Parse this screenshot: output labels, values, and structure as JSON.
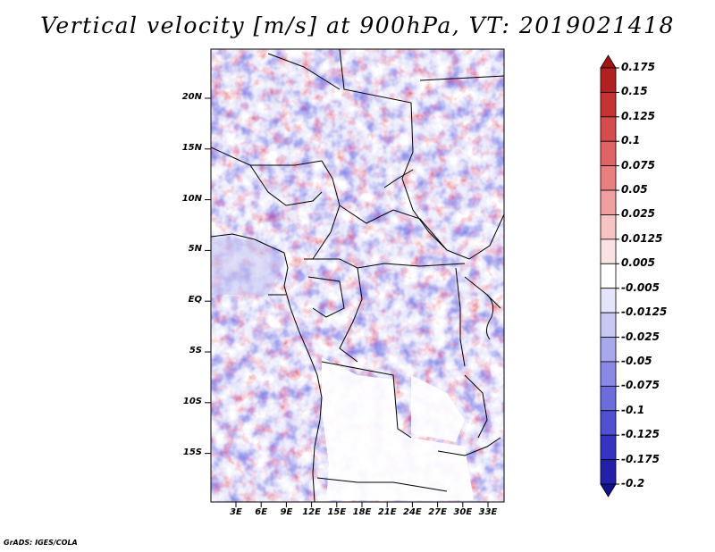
{
  "title": "Vertical velocity [m/s] at 900hPa, VT: 2019021418",
  "credit": "GrADS: IGES/COLA",
  "map": {
    "lat_labels": [
      "20N",
      "15N",
      "10N",
      "5N",
      "EQ",
      "5S",
      "10S",
      "15S"
    ],
    "lon_labels": [
      "3E",
      "6E",
      "9E",
      "12E",
      "15E",
      "18E",
      "21E",
      "24E",
      "27E",
      "30E",
      "33E"
    ]
  },
  "colorbar": {
    "labels": [
      "0.175",
      "0.15",
      "0.125",
      "0.1",
      "0.075",
      "0.05",
      "0.025",
      "0.0125",
      "0.005",
      "-0.005",
      "-0.0125",
      "-0.025",
      "-0.05",
      "-0.075",
      "-0.1",
      "-0.125",
      "-0.175",
      "-0.2"
    ],
    "colors": [
      "#a01414",
      "#b02222",
      "#c43434",
      "#d44c4c",
      "#e06464",
      "#e88080",
      "#f0a0a0",
      "#f7c4c4",
      "#fbe2e2",
      "#ffffff",
      "#e4e4fa",
      "#c8c8f4",
      "#a8a8ee",
      "#8a8ae6",
      "#6c6cdc",
      "#5050d0",
      "#3434c0",
      "#2020a8",
      "#12128c"
    ]
  }
}
